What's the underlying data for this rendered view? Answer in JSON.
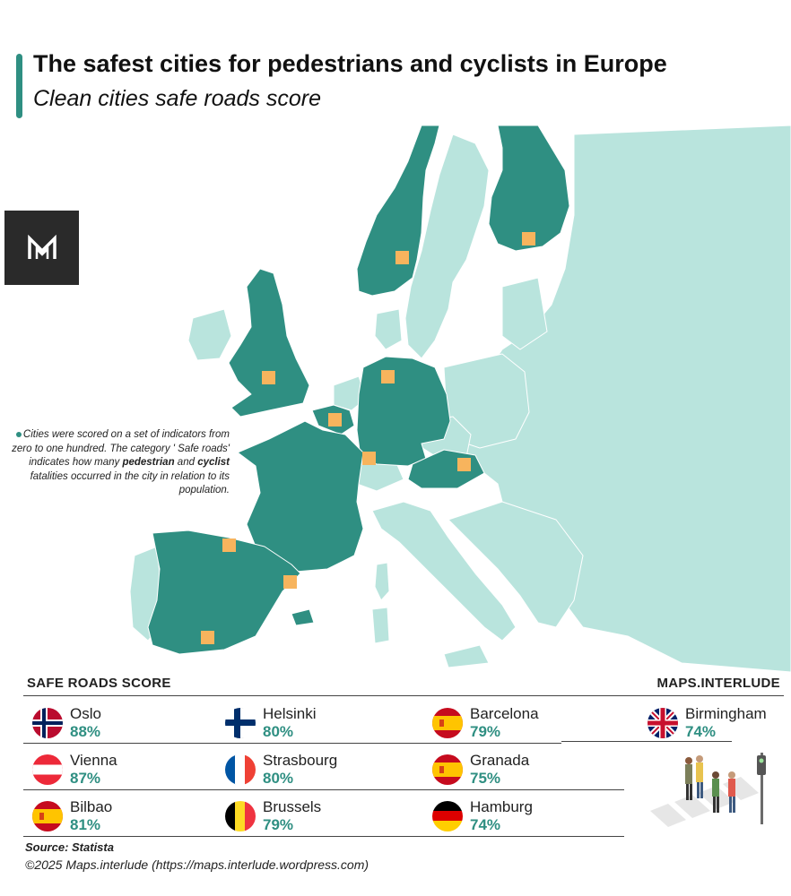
{
  "header": {
    "title": "The safest cities for pedestrians and cyclists in Europe",
    "subtitle": "Clean cities safe roads score"
  },
  "note": {
    "part1": "Cities were scored on a set of indicators from zero to one hundred. The category ' Safe roads' indicates how many ",
    "bold1": "pedestrian",
    "part2": " and ",
    "bold2": "cyclist",
    "part3": " fatalities occurred in the city in relation to its population."
  },
  "legend": {
    "heading": "SAFE ROADS SCORE",
    "brand": "MAPS.INTERLUDE",
    "entries": [
      {
        "city": "Oslo",
        "score": "88%",
        "flag": "norway"
      },
      {
        "city": "Helsinki",
        "score": "80%",
        "flag": "finland"
      },
      {
        "city": "Barcelona",
        "score": "79%",
        "flag": "spain"
      },
      {
        "city": "Birmingham",
        "score": "74%",
        "flag": "uk"
      },
      {
        "city": "Vienna",
        "score": "87%",
        "flag": "austria"
      },
      {
        "city": "Strasbourg",
        "score": "80%",
        "flag": "france"
      },
      {
        "city": "Granada",
        "score": "75%",
        "flag": "spain"
      },
      {
        "city": "Bilbao",
        "score": "81%",
        "flag": "spain"
      },
      {
        "city": "Brussels",
        "score": "79%",
        "flag": "belgium"
      },
      {
        "city": "Hamburg",
        "score": "74%",
        "flag": "germany"
      }
    ]
  },
  "footer": {
    "source": "Source: Statista",
    "copyright": "©2025 Maps.interlude (https://maps.interlude.wordpress.com)"
  },
  "colors": {
    "highlight_country": "#2f8f82",
    "other_land": "#b9e4dd",
    "city_marker": "#f7b45d",
    "border": "#ffffff"
  },
  "map": {
    "highlighted_countries": [
      "Norway",
      "Finland",
      "United Kingdom",
      "Germany",
      "Belgium",
      "France",
      "Austria",
      "Spain"
    ],
    "markers": [
      "Oslo",
      "Helsinki",
      "Birmingham",
      "Hamburg",
      "Brussels",
      "Strasbourg",
      "Vienna",
      "Bilbao",
      "Barcelona",
      "Granada"
    ]
  }
}
